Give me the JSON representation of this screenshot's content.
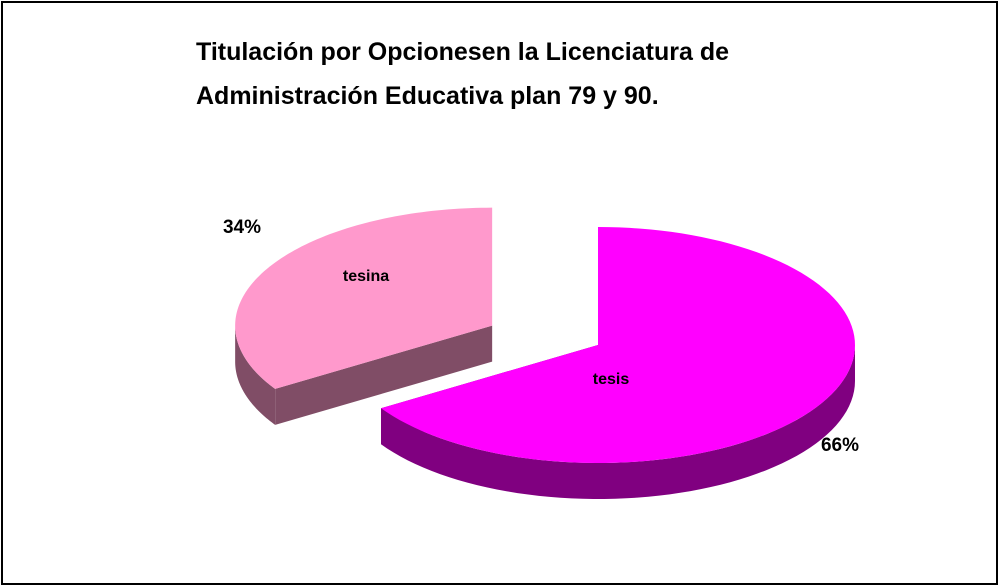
{
  "chart_data": {
    "type": "pie",
    "title": "Titulación por Opcionesen la Licenciatura de Administración Educativa plan 79 y 90.",
    "categories": [
      "tesis",
      "tesina"
    ],
    "values": [
      66,
      34
    ],
    "value_labels": [
      "66%",
      "34%"
    ],
    "colors": [
      "#ff00ff",
      "#ff99cc"
    ]
  }
}
